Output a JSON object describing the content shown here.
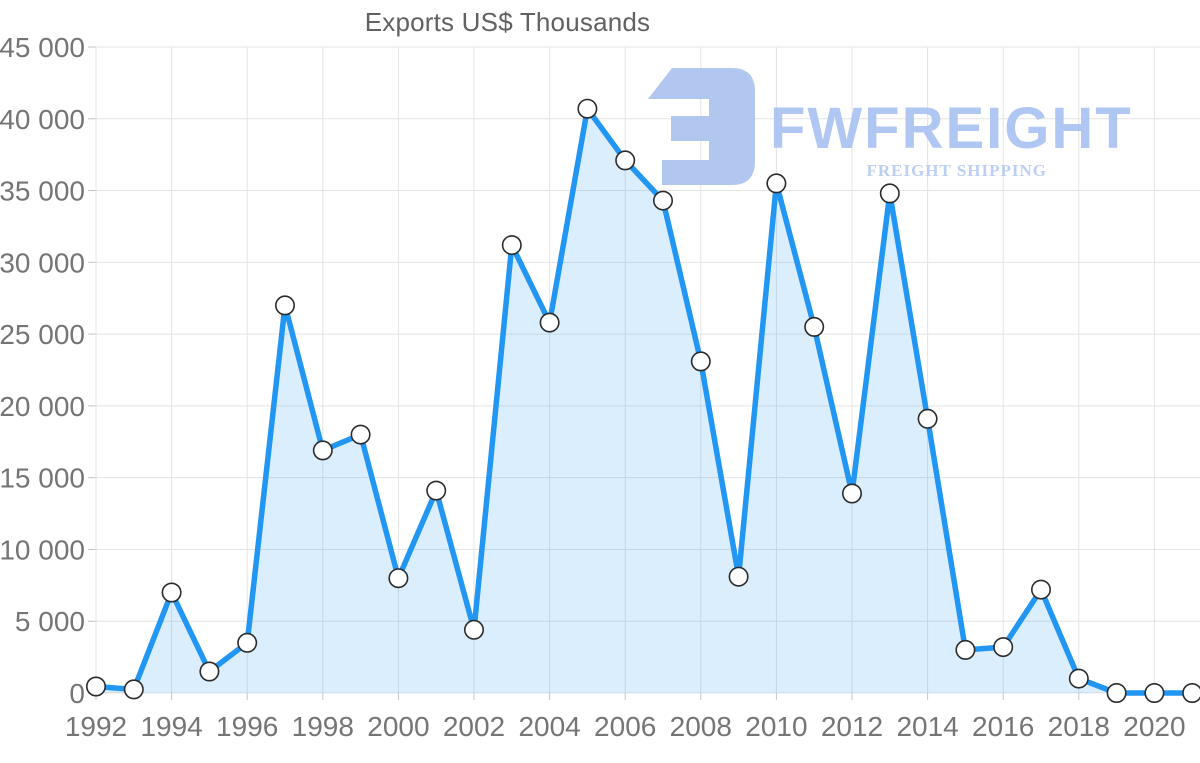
{
  "title": "Exports US$ Thousands",
  "watermark": {
    "brand": "FWFREIGHT",
    "tagline": "FREIGHT SHIPPING",
    "mark_color": "#abc3ee",
    "brand_color": "#a9c3f1",
    "tagline_color": "#b7cbf3"
  },
  "chart_data": {
    "type": "area",
    "title": "Exports US$ Thousands",
    "xlabel": "",
    "ylabel": "",
    "x": [
      1992,
      1993,
      1994,
      1995,
      1996,
      1997,
      1998,
      1999,
      2000,
      2001,
      2002,
      2003,
      2004,
      2005,
      2006,
      2007,
      2008,
      2009,
      2010,
      2011,
      2012,
      2013,
      2014,
      2015,
      2016,
      2017,
      2018,
      2019,
      2020,
      2021
    ],
    "values": [
      450,
      250,
      7000,
      1500,
      3500,
      27000,
      16900,
      18000,
      8000,
      14100,
      4400,
      31200,
      25800,
      40700,
      37100,
      34300,
      23100,
      8100,
      35500,
      25500,
      13900,
      34800,
      19100,
      3000,
      3200,
      7200,
      1000,
      0,
      0,
      0
    ],
    "ylim": [
      0,
      45000
    ],
    "ytick_step": 5000,
    "ytick_labels": [
      "0",
      "5 000",
      "10 000",
      "15 000",
      "20 000",
      "25 000",
      "30 000",
      "35 000",
      "40 000",
      "45 000"
    ],
    "xtick_labels": [
      "1992",
      "1994",
      "1996",
      "1998",
      "2000",
      "2002",
      "2004",
      "2006",
      "2008",
      "2010",
      "2012",
      "2014",
      "2016",
      "2018",
      "2020"
    ],
    "grid": true,
    "legend": "none",
    "line_color": "#2196f3",
    "area_fill": "rgba(33,150,243,0.16)",
    "marker_fill": "#ffffff",
    "marker_stroke": "#2b2b2b",
    "grid_color": "#e4e4e4",
    "tick_color": "#c4c4c4",
    "label_color": "#757575"
  }
}
